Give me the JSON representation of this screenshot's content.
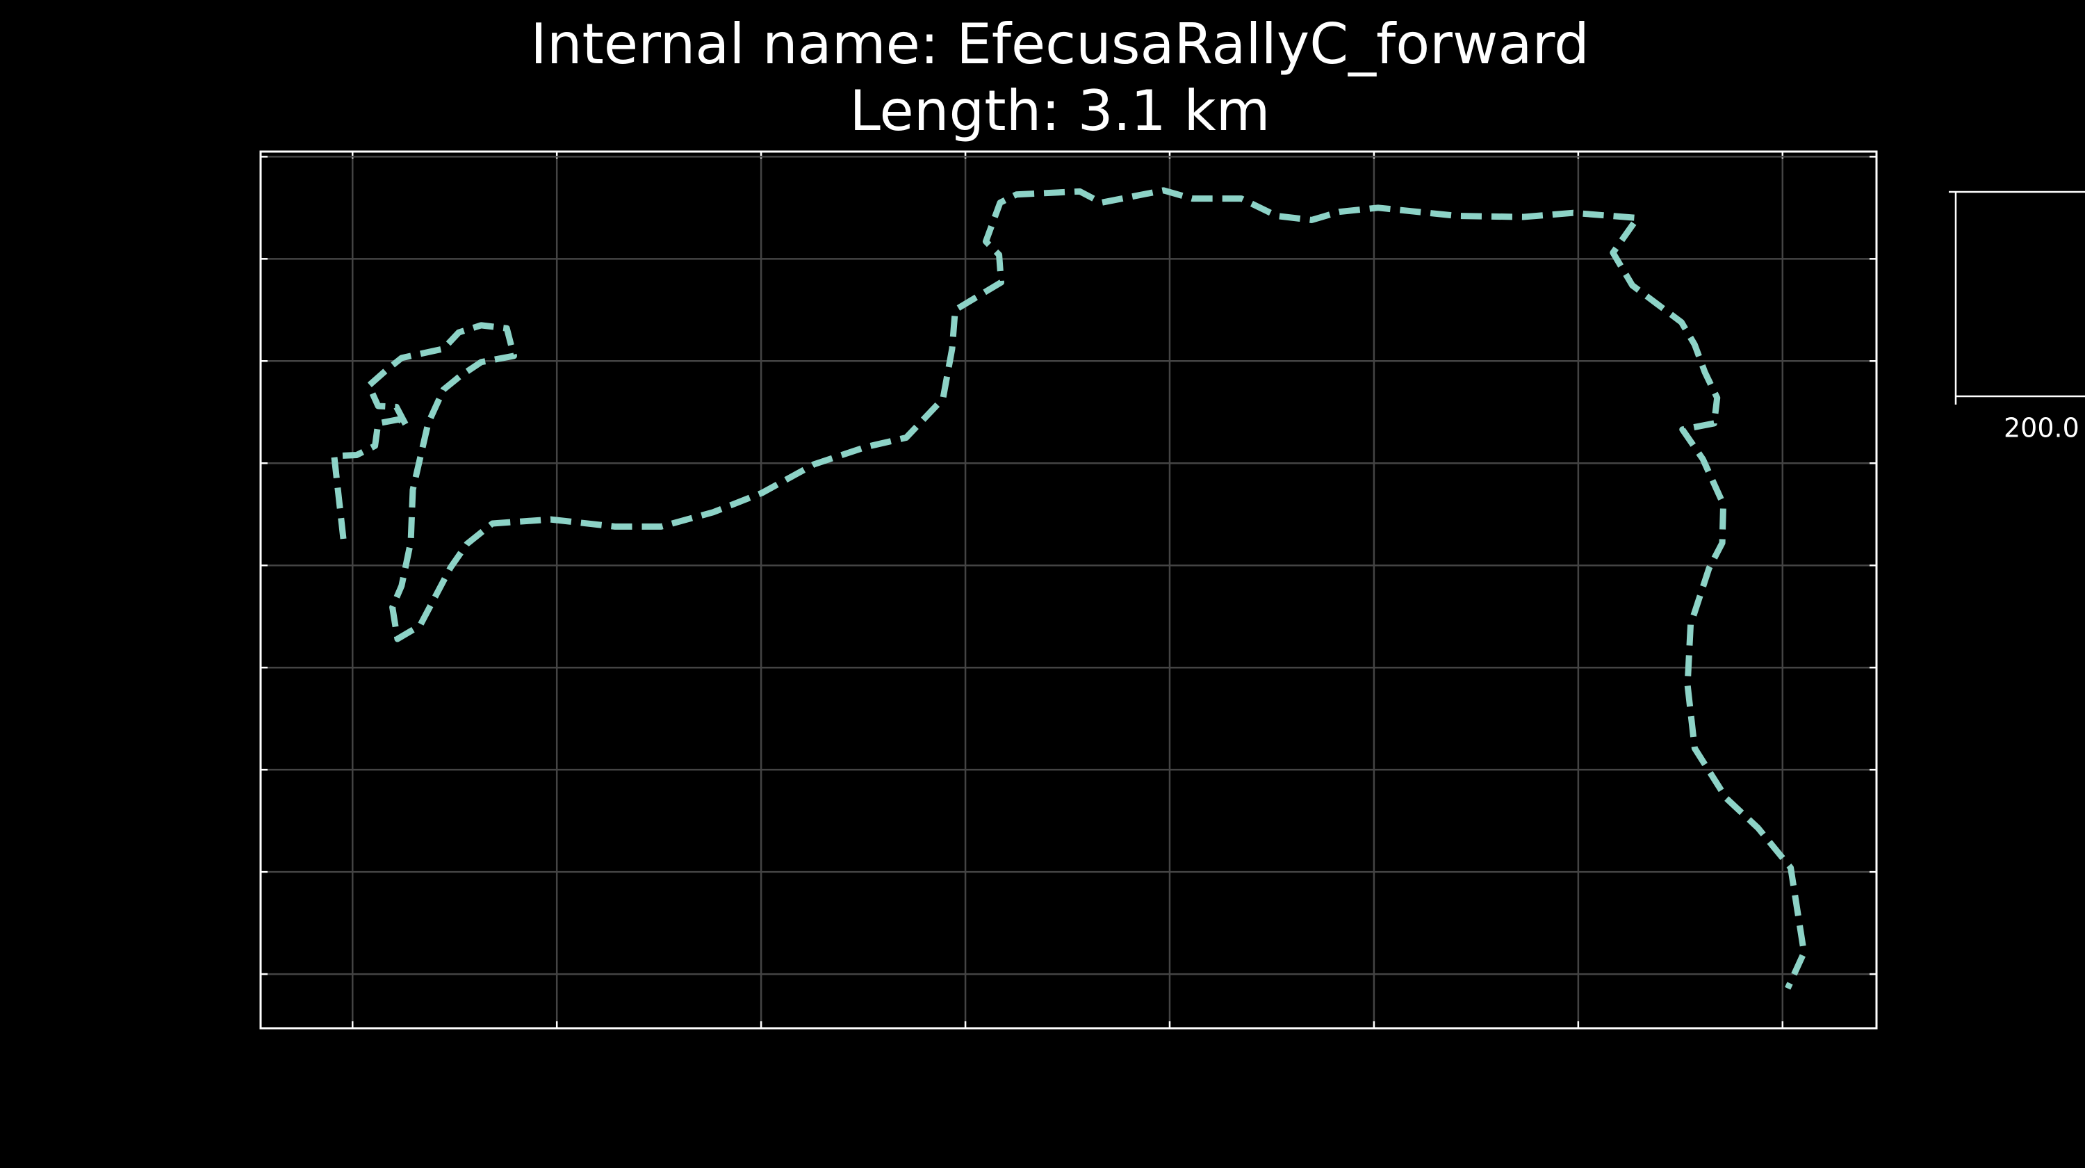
{
  "chart_data": {
    "type": "line",
    "title": "Internal name: EfecusaRallyC_forward",
    "subtitle": "Length: 3.1 km",
    "x": [
      -9,
      -18,
      4,
      22,
      25,
      46,
      53,
      43,
      25,
      16,
      33,
      48,
      89,
      104,
      126,
      151,
      158,
      126,
      105,
      89,
      74,
      59,
      57,
      48,
      39,
      44,
      66,
      96,
      112,
      137,
      194,
      257,
      302,
      353,
      401,
      452,
      503,
      542,
      578,
      587,
      590,
      635,
      633,
      620,
      634,
      650,
      712,
      733,
      794,
      822,
      870,
      905,
      939,
      966,
      1004,
      1082,
      1146,
      1195,
      1258,
      1234,
      1253,
      1277,
      1301,
      1314,
      1324,
      1336,
      1333,
      1302,
      1322,
      1342,
      1341,
      1328,
      1310,
      1307,
      1314,
      1345,
      1376,
      1408,
      1421,
      1405
    ],
    "series": [
      {
        "color": "#8dd3c7",
        "values": [
          426,
          507,
          508,
          517,
          539,
          543,
          536,
          555,
          556,
          576,
          591,
          603,
          612,
          628,
          635,
          632,
          605,
          599,
          585,
          572,
          539,
          474,
          423,
          380,
          359,
          328,
          341,
          398,
          421,
          441,
          445,
          438,
          438,
          452,
          471,
          499,
          516,
          525,
          563,
          612,
          650,
          677,
          704,
          717,
          755,
          763,
          766,
          755,
          767,
          759,
          759,
          742,
          738,
          746,
          750,
          742,
          741,
          745,
          740,
          706,
          674,
          656,
          638,
          616,
          589,
          564,
          539,
          533,
          504,
          460,
          422,
          397,
          342,
          283,
          221,
          172,
          143,
          104,
          21,
          -14
        ]
      }
    ],
    "xlim": [
      -90,
      1492
    ],
    "ylim": [
      -53,
      805
    ],
    "xticks": [
      0,
      200,
      400,
      600,
      800,
      1000,
      1200,
      1400
    ],
    "yticks": [
      0,
      100,
      200,
      300,
      400,
      500,
      600,
      700,
      800
    ],
    "grid": true,
    "scale_bar": {
      "value": 200,
      "label": "200.0"
    }
  }
}
